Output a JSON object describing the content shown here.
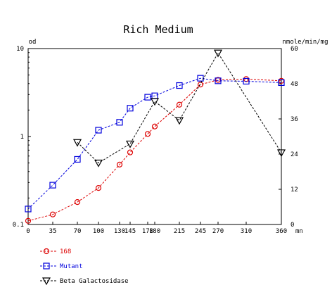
{
  "chart_data": {
    "type": "line",
    "title": "Rich Medium",
    "y_left_label": "od",
    "y_right_label": "nmole/min/mg",
    "x_unit_label": "mn",
    "x_ticks": [
      0,
      35,
      70,
      100,
      130,
      145,
      170,
      180,
      215,
      245,
      270,
      310,
      360
    ],
    "x_tick_labels": [
      "0",
      "35",
      "70",
      "100",
      "130",
      "145",
      "170",
      "180",
      "215",
      "245",
      "270",
      "310",
      "360"
    ],
    "xlim": [
      0,
      360
    ],
    "y_left": {
      "scale": "log",
      "lim": [
        0.1,
        10
      ],
      "ticks": [
        0.1,
        1,
        10
      ],
      "tick_labels": [
        "0.1",
        "1",
        "10"
      ]
    },
    "y_right": {
      "scale": "linear",
      "lim": [
        0,
        60
      ],
      "ticks": [
        0,
        12,
        24,
        36,
        48,
        60
      ],
      "tick_labels": [
        "0",
        "12",
        "24",
        "36",
        "48",
        "60"
      ]
    },
    "series": [
      {
        "name": "168",
        "axis": "left",
        "marker": "circle",
        "color": "#dd0000",
        "points": [
          [
            0,
            0.11
          ],
          [
            35,
            0.13
          ],
          [
            70,
            0.18
          ],
          [
            100,
            0.26
          ],
          [
            130,
            0.48
          ],
          [
            145,
            0.66
          ],
          [
            170,
            1.07
          ],
          [
            180,
            1.3
          ],
          [
            215,
            2.3
          ],
          [
            245,
            3.9
          ],
          [
            270,
            4.4
          ],
          [
            310,
            4.5
          ],
          [
            360,
            4.3
          ]
        ]
      },
      {
        "name": "Mutant",
        "axis": "left",
        "marker": "square",
        "color": "#0000dd",
        "points": [
          [
            0,
            0.15
          ],
          [
            35,
            0.28
          ],
          [
            70,
            0.55
          ],
          [
            100,
            1.18
          ],
          [
            130,
            1.45
          ],
          [
            145,
            2.1
          ],
          [
            170,
            2.8
          ],
          [
            180,
            2.9
          ],
          [
            215,
            3.8
          ],
          [
            245,
            4.6
          ],
          [
            270,
            4.3
          ],
          [
            310,
            4.25
          ],
          [
            360,
            4.1
          ]
        ]
      },
      {
        "name": "Beta Galactosidase",
        "axis": "right",
        "marker": "triangle-down",
        "color": "#000000",
        "points": [
          [
            70,
            28
          ],
          [
            100,
            21
          ],
          [
            145,
            27.5
          ],
          [
            180,
            42
          ],
          [
            215,
            35.5
          ],
          [
            270,
            58.5
          ],
          [
            360,
            24.5
          ]
        ]
      }
    ],
    "grid": false,
    "legend_placement": "bottom-left"
  }
}
